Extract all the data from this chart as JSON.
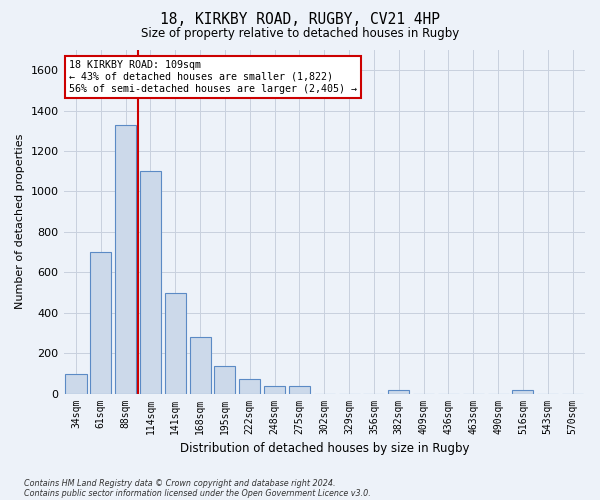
{
  "title_line1": "18, KIRKBY ROAD, RUGBY, CV21 4HP",
  "title_line2": "Size of property relative to detached houses in Rugby",
  "xlabel": "Distribution of detached houses by size in Rugby",
  "ylabel": "Number of detached properties",
  "footnote1": "Contains HM Land Registry data © Crown copyright and database right 2024.",
  "footnote2": "Contains public sector information licensed under the Open Government Licence v3.0.",
  "annotation_title": "18 KIRKBY ROAD: 109sqm",
  "annotation_line1": "← 43% of detached houses are smaller (1,822)",
  "annotation_line2": "56% of semi-detached houses are larger (2,405) →",
  "bar_color": "#ccd9ea",
  "bar_edge_color": "#5b8ac5",
  "grid_color": "#c8d0de",
  "bg_color": "#edf2f9",
  "annotation_box_color": "#ffffff",
  "annotation_box_edge": "#cc0000",
  "redline_color": "#cc0000",
  "categories": [
    "34sqm",
    "61sqm",
    "88sqm",
    "114sqm",
    "141sqm",
    "168sqm",
    "195sqm",
    "222sqm",
    "248sqm",
    "275sqm",
    "302sqm",
    "329sqm",
    "356sqm",
    "382sqm",
    "409sqm",
    "436sqm",
    "463sqm",
    "490sqm",
    "516sqm",
    "543sqm",
    "570sqm"
  ],
  "values": [
    97,
    700,
    1330,
    1100,
    500,
    278,
    137,
    72,
    35,
    35,
    0,
    0,
    0,
    17,
    0,
    0,
    0,
    0,
    17,
    0,
    0
  ],
  "ylim": [
    0,
    1700
  ],
  "yticks": [
    0,
    200,
    400,
    600,
    800,
    1000,
    1200,
    1400,
    1600
  ],
  "redline_x": 2.5,
  "bar_width": 0.85,
  "figsize": [
    6.0,
    5.0
  ],
  "dpi": 100
}
